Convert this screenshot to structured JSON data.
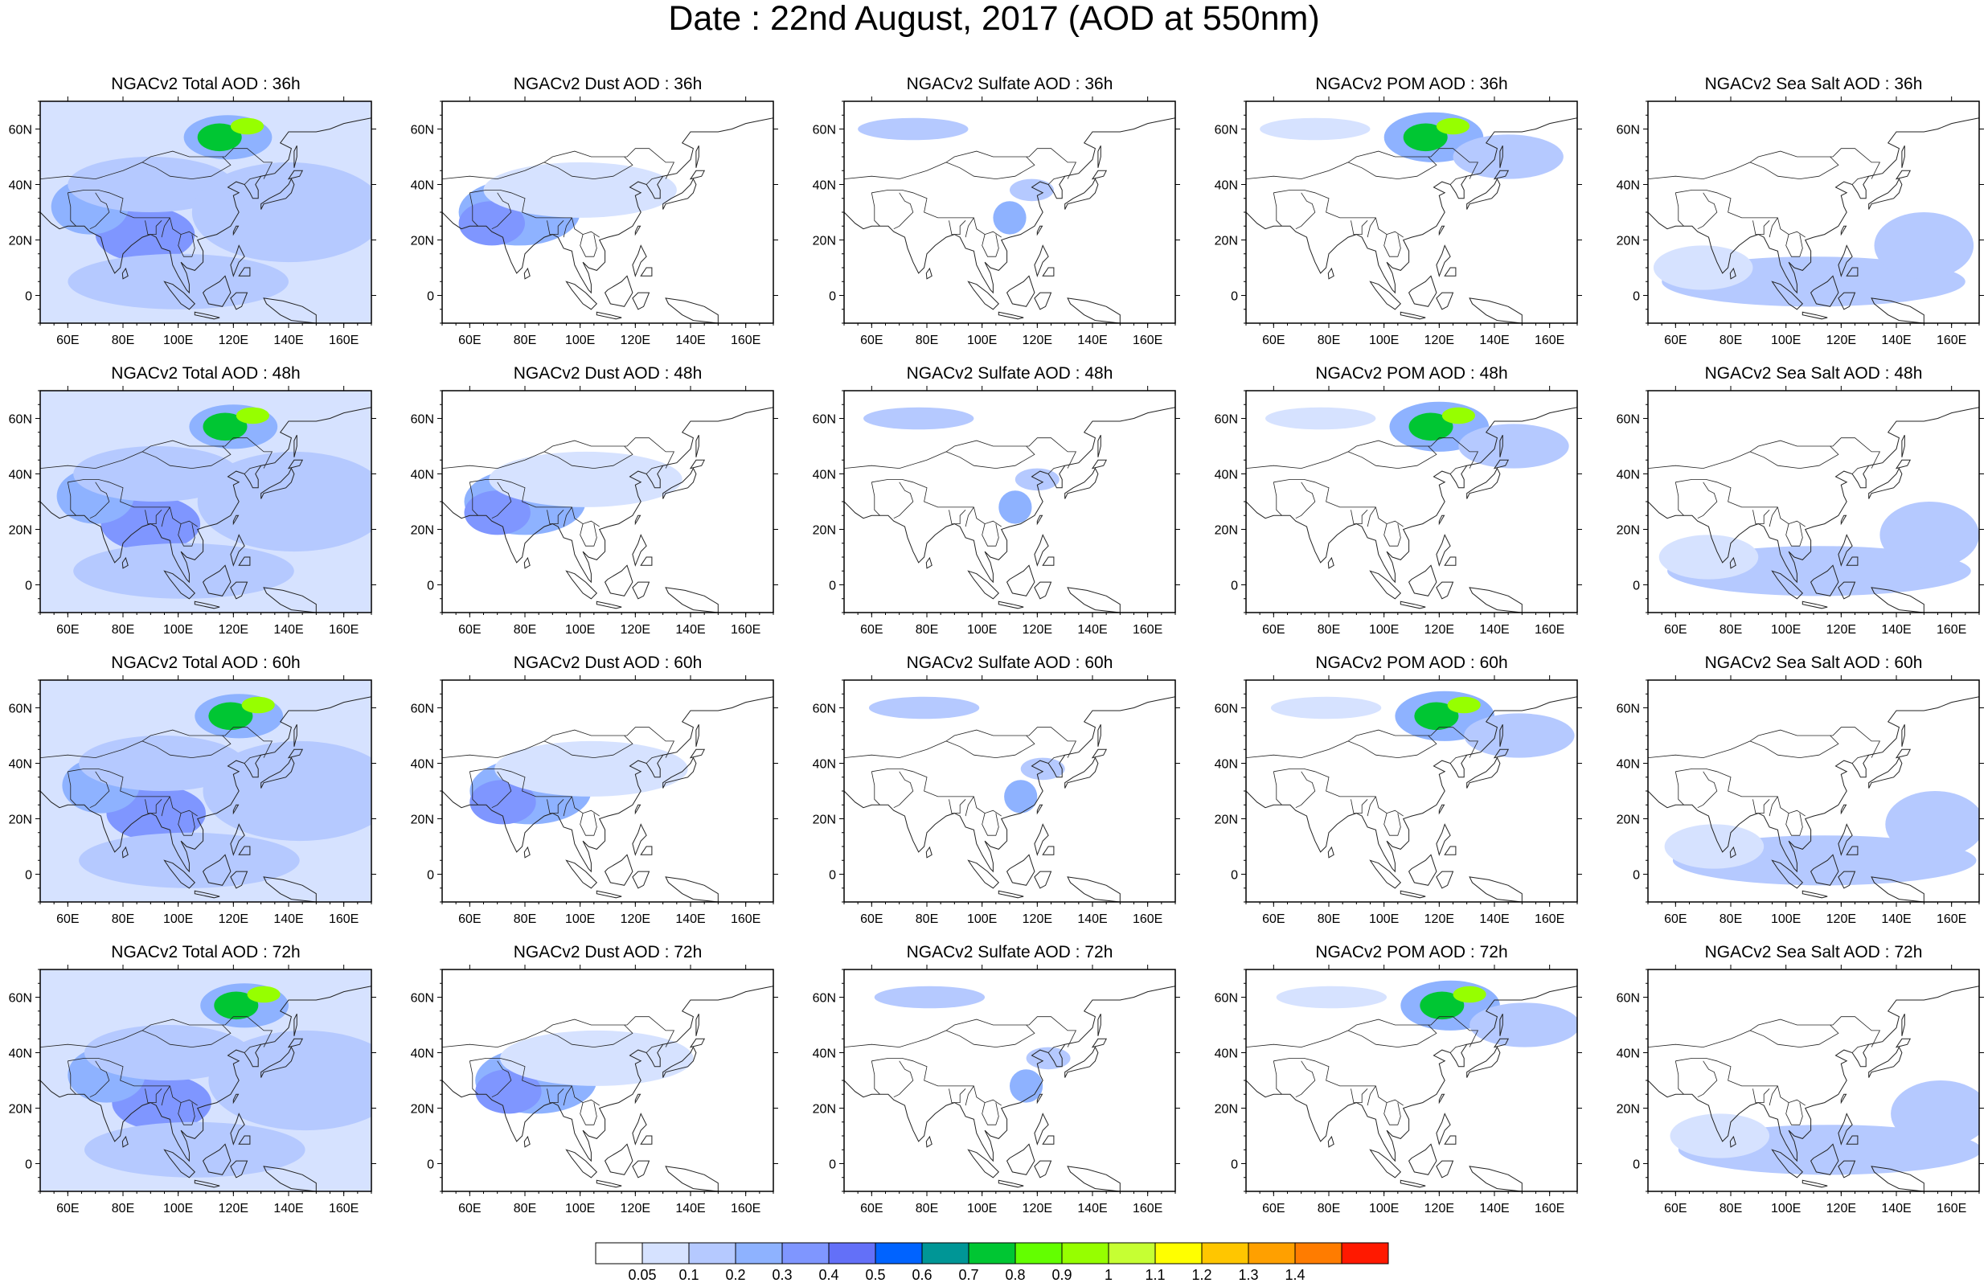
{
  "title": "Date : 22nd August, 2017 (AOD at 550nm)",
  "x_tick_labels": [
    "60E",
    "80E",
    "100E",
    "120E",
    "140E",
    "160E"
  ],
  "y_tick_labels": [
    "60N",
    "40N",
    "20N",
    "0"
  ],
  "map_extent": {
    "lon": [
      50,
      170
    ],
    "lat": [
      -10,
      70
    ]
  },
  "panels": [
    {
      "title": "NGACv2 Total AOD : 36h",
      "species": "total",
      "hour": 36
    },
    {
      "title": "NGACv2 Dust AOD : 36h",
      "species": "dust",
      "hour": 36
    },
    {
      "title": "NGACv2 Sulfate AOD : 36h",
      "species": "sulfate",
      "hour": 36
    },
    {
      "title": "NGACv2 POM AOD : 36h",
      "species": "pom",
      "hour": 36
    },
    {
      "title": "NGACv2 Sea Salt AOD : 36h",
      "species": "seasalt",
      "hour": 36
    },
    {
      "title": "NGACv2 Total AOD : 48h",
      "species": "total",
      "hour": 48
    },
    {
      "title": "NGACv2 Dust AOD : 48h",
      "species": "dust",
      "hour": 48
    },
    {
      "title": "NGACv2 Sulfate AOD : 48h",
      "species": "sulfate",
      "hour": 48
    },
    {
      "title": "NGACv2 POM AOD : 48h",
      "species": "pom",
      "hour": 48
    },
    {
      "title": "NGACv2 Sea Salt AOD : 48h",
      "species": "seasalt",
      "hour": 48
    },
    {
      "title": "NGACv2 Total AOD : 60h",
      "species": "total",
      "hour": 60
    },
    {
      "title": "NGACv2 Dust AOD : 60h",
      "species": "dust",
      "hour": 60
    },
    {
      "title": "NGACv2 Sulfate AOD : 60h",
      "species": "sulfate",
      "hour": 60
    },
    {
      "title": "NGACv2 POM AOD : 60h",
      "species": "pom",
      "hour": 60
    },
    {
      "title": "NGACv2 Sea Salt AOD : 60h",
      "species": "seasalt",
      "hour": 60
    },
    {
      "title": "NGACv2 Total AOD : 72h",
      "species": "total",
      "hour": 72
    },
    {
      "title": "NGACv2 Dust AOD : 72h",
      "species": "dust",
      "hour": 72
    },
    {
      "title": "NGACv2 Sulfate AOD : 72h",
      "species": "sulfate",
      "hour": 72
    },
    {
      "title": "NGACv2 POM AOD : 72h",
      "species": "pom",
      "hour": 72
    },
    {
      "title": "NGACv2 Sea Salt  AOD : 72h",
      "species": "seasalt",
      "hour": 72
    }
  ],
  "colorbar": {
    "colors": [
      "#ffffff",
      "#d6e2ff",
      "#b5c9ff",
      "#8eb2ff",
      "#7f96ff",
      "#6370f8",
      "#0063ff",
      "#009696",
      "#00c633",
      "#63ff00",
      "#96ff00",
      "#c6ff33",
      "#ffff00",
      "#ffc600",
      "#ffa000",
      "#ff7c00",
      "#ff1900"
    ],
    "labels": [
      "0.05",
      "0.1",
      "0.2",
      "0.3",
      "0.4",
      "0.5",
      "0.6",
      "0.7",
      "0.8",
      "0.9",
      "1",
      "1.1",
      "1.2",
      "1.3",
      "1.4"
    ]
  },
  "plumes": {
    "total": [
      {
        "lon": 88,
        "lat": 22,
        "rx": 18,
        "ry": 10,
        "level": 4
      },
      {
        "lon": 68,
        "lat": 32,
        "rx": 14,
        "ry": 10,
        "level": 3
      },
      {
        "lon": 90,
        "lat": 40,
        "rx": 30,
        "ry": 10,
        "level": 2
      },
      {
        "lon": 140,
        "lat": 30,
        "rx": 35,
        "ry": 18,
        "level": 2
      },
      {
        "lon": 100,
        "lat": 5,
        "rx": 40,
        "ry": 10,
        "level": 2
      },
      {
        "lon": 118,
        "lat": 57,
        "rx": 16,
        "ry": 8,
        "level": 3
      },
      {
        "lon": 115,
        "lat": 57,
        "rx": 8,
        "ry": 5,
        "level": 8
      },
      {
        "lon": 125,
        "lat": 61,
        "rx": 6,
        "ry": 3,
        "level": 10
      }
    ],
    "dust": [
      {
        "lon": 78,
        "lat": 30,
        "rx": 22,
        "ry": 12,
        "level": 3
      },
      {
        "lon": 68,
        "lat": 26,
        "rx": 12,
        "ry": 8,
        "level": 4
      },
      {
        "lon": 100,
        "lat": 38,
        "rx": 35,
        "ry": 10,
        "level": 1
      }
    ],
    "sulfate": [
      {
        "lon": 75,
        "lat": 60,
        "rx": 20,
        "ry": 4,
        "level": 2
      },
      {
        "lon": 110,
        "lat": 28,
        "rx": 6,
        "ry": 6,
        "level": 3
      },
      {
        "lon": 118,
        "lat": 38,
        "rx": 8,
        "ry": 4,
        "level": 2
      }
    ],
    "pom": [
      {
        "lon": 118,
        "lat": 57,
        "rx": 18,
        "ry": 9,
        "level": 3
      },
      {
        "lon": 115,
        "lat": 57,
        "rx": 8,
        "ry": 5,
        "level": 8
      },
      {
        "lon": 125,
        "lat": 61,
        "rx": 6,
        "ry": 3,
        "level": 10
      },
      {
        "lon": 145,
        "lat": 50,
        "rx": 20,
        "ry": 8,
        "level": 2
      },
      {
        "lon": 75,
        "lat": 60,
        "rx": 20,
        "ry": 4,
        "level": 1
      }
    ],
    "seasalt": [
      {
        "lon": 110,
        "lat": 5,
        "rx": 55,
        "ry": 9,
        "level": 2
      },
      {
        "lon": 150,
        "lat": 18,
        "rx": 18,
        "ry": 12,
        "level": 2
      },
      {
        "lon": 70,
        "lat": 10,
        "rx": 18,
        "ry": 8,
        "level": 1
      }
    ]
  }
}
